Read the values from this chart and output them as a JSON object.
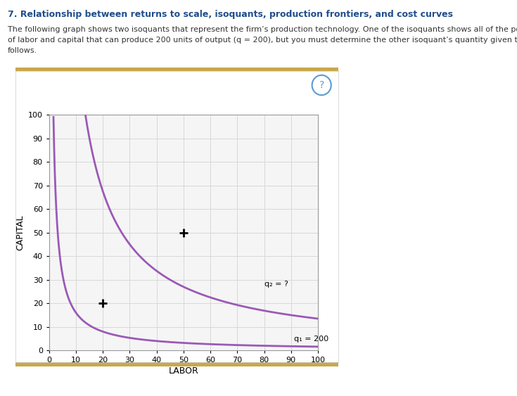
{
  "title": "7. Relationship between returns to scale, isoquants, production frontiers, and cost curves",
  "para1": "The following graph shows two isoquants that represent the firm’s production technology. One of the isoquants shows all of the possible combinations",
  "para2": "of labor and capital that can produce 200 units of output (q = 200), but you must determine the other isoquant’s quantity given the information that",
  "para3": "follows.",
  "xlabel": "LABOR",
  "ylabel": "CAPITAL",
  "xlim": [
    0,
    100
  ],
  "ylim": [
    0,
    100
  ],
  "xticks": [
    0,
    10,
    20,
    30,
    40,
    50,
    60,
    70,
    80,
    90,
    100
  ],
  "yticks": [
    0,
    10,
    20,
    30,
    40,
    50,
    60,
    70,
    80,
    90,
    100
  ],
  "curve_color": "#9b59b6",
  "curve_lw": 2.0,
  "q1_label": "q₁ = 200",
  "q2_label": "q₂ = ?",
  "q1_k": 160.0,
  "q2_k": 1350.0,
  "marker1_x": 20,
  "marker1_y": 20,
  "marker2_x": 50,
  "marker2_y": 50,
  "plot_bg_color": "#f5f5f5",
  "grid_color": "#d8d8d8",
  "card_border_color": "#c8a84b",
  "question_circle_color": "#5b9bd5",
  "title_color": "#1f4e8c",
  "text_color": "#333333",
  "outer_bg": "#ffffff",
  "label_fontsize": 8,
  "axis_tick_fontsize": 8,
  "axis_label_fontsize": 9,
  "title_fontsize": 9,
  "para_fontsize": 8
}
